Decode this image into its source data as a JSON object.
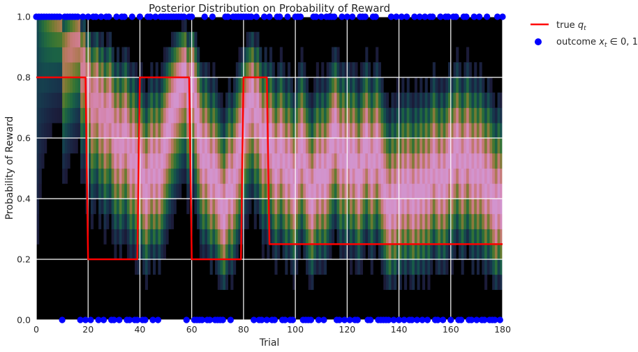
{
  "chart_data": {
    "type": "heatmap",
    "title": "Posterior Distribution on Probability of Reward",
    "xlabel": "Trial",
    "ylabel": "Probability of Reward",
    "xlim": [
      0,
      180
    ],
    "ylim": [
      0,
      1
    ],
    "xticks": [
      "0",
      "20",
      "40",
      "60",
      "80",
      "100",
      "120",
      "140",
      "160",
      "180"
    ],
    "yticks": [
      "0.0",
      "0.2",
      "0.4",
      "0.6",
      "0.8",
      "1.0"
    ],
    "grid": true,
    "legend_position": "outside-right",
    "colormap": "cubehelix",
    "series": [
      {
        "name": "true q_t",
        "type": "line",
        "color": "#ff0000",
        "segments": [
          {
            "x": [
              0,
              19
            ],
            "y": 0.8
          },
          {
            "x": [
              20,
              39
            ],
            "y": 0.2
          },
          {
            "x": [
              40,
              59
            ],
            "y": 0.8
          },
          {
            "x": [
              60,
              79
            ],
            "y": 0.2
          },
          {
            "x": [
              80,
              89
            ],
            "y": 0.8
          },
          {
            "x": [
              90,
              180
            ],
            "y": 0.25
          }
        ]
      },
      {
        "name": "outcome x_t ∈ 0, 1",
        "type": "scatter",
        "color": "#0000ff"
      }
    ],
    "outcomes_pattern": "1111111111011111101010110101100101100100100110101111111111011000010010000110111111110100101001100100111000011010111100101010011100110000010101010010101011001011011001100101001000101110110111"
  },
  "legend": {
    "line_label": "true",
    "line_sub": "t",
    "scatter_label": "outcome",
    "scatter_sub": "t",
    "scatter_rest": "∈ 0, 1"
  },
  "colors": {
    "background": "#000000",
    "grid": "#ffffff",
    "line": "#ff0000",
    "points": "#0000ff"
  }
}
